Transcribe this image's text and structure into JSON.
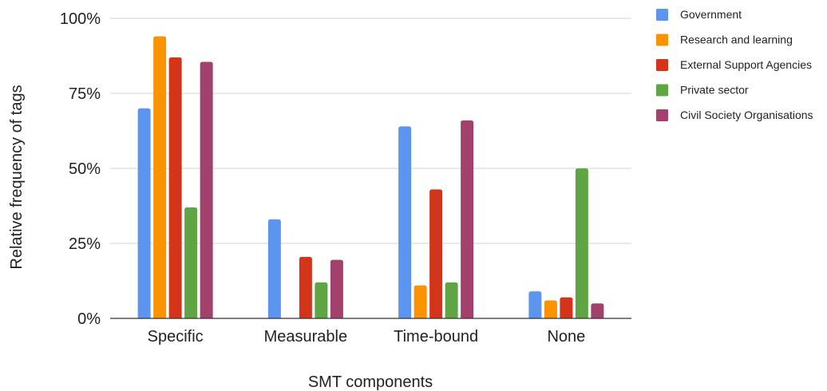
{
  "chart_data": {
    "type": "bar",
    "categories": [
      "Specific",
      "Measurable",
      "Time-bound",
      "None"
    ],
    "series": [
      {
        "name": "Government",
        "color": "#5b95f0",
        "values": [
          70,
          33,
          64,
          9
        ]
      },
      {
        "name": "Research and learning",
        "color": "#fb9300",
        "values": [
          94,
          0,
          11,
          6
        ]
      },
      {
        "name": "External Support Agencies",
        "color": "#d23519",
        "values": [
          87,
          20.5,
          43,
          7
        ]
      },
      {
        "name": "Private sector",
        "color": "#5fa543",
        "values": [
          37,
          12,
          12,
          50
        ]
      },
      {
        "name": "Civil Society Organisations",
        "color": "#a2416b",
        "values": [
          85.5,
          19.5,
          66,
          5
        ]
      }
    ],
    "xlabel": "SMT components",
    "ylabel": "Relative frequency of tags",
    "ylim": [
      0,
      100
    ],
    "yticks": [
      "0%",
      "25%",
      "50%",
      "75%",
      "100%"
    ],
    "grid": true,
    "legend_position": "right"
  }
}
